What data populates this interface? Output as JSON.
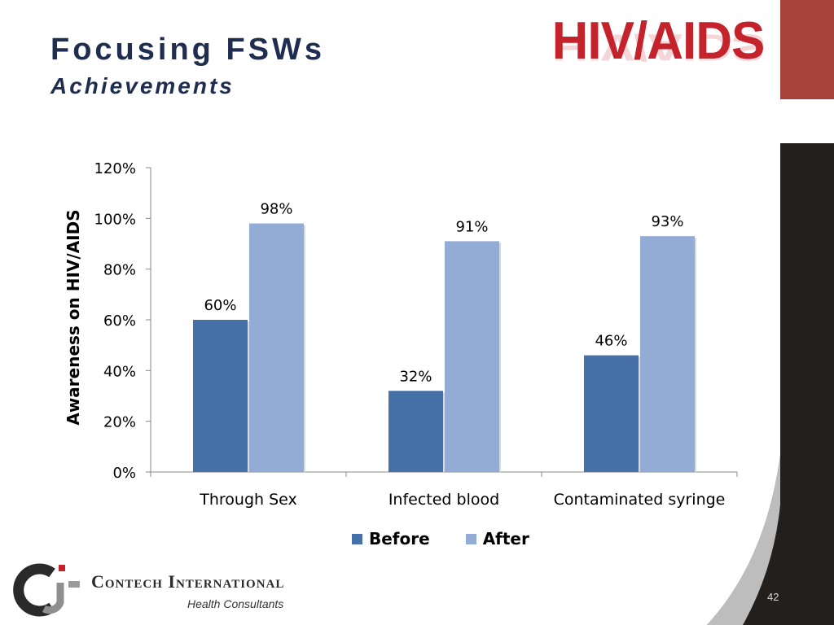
{
  "slide": {
    "title": "Focusing FSWs",
    "subtitle": "Achievements",
    "logo_text": "HIV/AIDS",
    "company_name_1": "Contech",
    "company_name_2": "International",
    "company_tagline": "Health Consultants",
    "page_number": "42"
  },
  "colors": {
    "title": "#1f2d4e",
    "logo_red": "#c4232c",
    "before": "#4570a8",
    "after": "#93acd5",
    "dark_panel": "#221f1c",
    "red_block": "#a6423a"
  },
  "chart_data": {
    "type": "bar",
    "categories": [
      "Through Sex",
      "Infected blood",
      "Contaminated syringe"
    ],
    "series": [
      {
        "name": "Before",
        "values": [
          60,
          32,
          46
        ],
        "labels": [
          "60%",
          "32%",
          "46%"
        ]
      },
      {
        "name": "After",
        "values": [
          98,
          91,
          93
        ],
        "labels": [
          "98%",
          "91%",
          "93%"
        ]
      }
    ],
    "ylabel": "Awareness on HIV/AIDS",
    "ylim": [
      0,
      120
    ],
    "yticks": [
      "0%",
      "20%",
      "40%",
      "60%",
      "80%",
      "100%",
      "120%"
    ],
    "legend_position": "bottom",
    "grid": false
  }
}
